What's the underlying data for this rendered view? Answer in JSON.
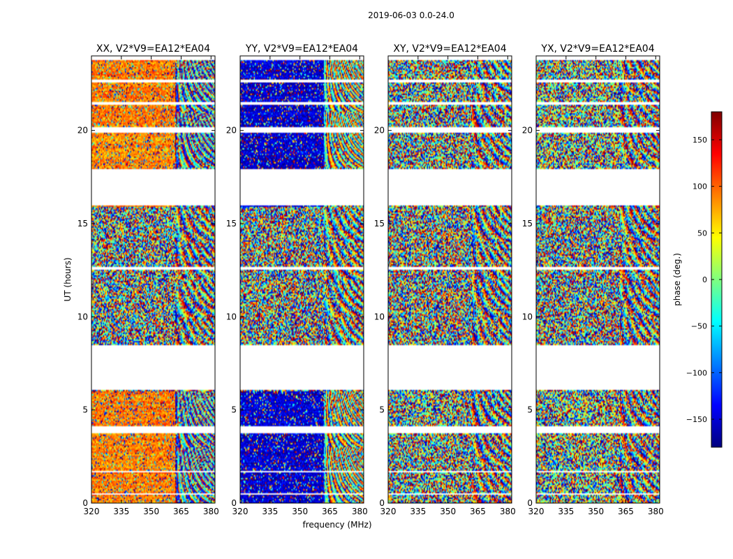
{
  "chart_data": {
    "type": "heatmap",
    "suptitle": "2019-06-03 0.0-24.0",
    "xlabel": "frequency (MHz)",
    "ylabel": "UT (hours)",
    "xlim": [
      320,
      382
    ],
    "ylim": [
      0,
      24
    ],
    "xticks": [
      320,
      335,
      350,
      365,
      380
    ],
    "yticks": [
      0,
      5,
      10,
      15,
      20
    ],
    "panels": [
      {
        "title": "XX, V2*V9=EA12*EA04",
        "bias": 90,
        "coherence": 0.75
      },
      {
        "title": "YY, V2*V9=EA12*EA04",
        "bias": -150,
        "coherence": 0.8
      },
      {
        "title": "XY, V2*V9=EA12*EA04",
        "bias": 0,
        "coherence": 0.05
      },
      {
        "title": "YX, V2*V9=EA12*EA04",
        "bias": 10,
        "coherence": 0.1
      }
    ],
    "data_gaps_hours": [
      [
        0.45,
        0.55
      ],
      [
        1.62,
        1.72
      ],
      [
        3.72,
        4.12
      ],
      [
        6.05,
        8.45
      ],
      [
        12.55,
        12.65
      ],
      [
        15.95,
        17.95
      ],
      [
        19.85,
        20.2
      ],
      [
        21.35,
        21.5
      ],
      [
        22.55,
        22.75
      ],
      [
        23.75,
        24.0
      ]
    ],
    "colorbar": {
      "label": "phase (deg.)",
      "vmin": -180,
      "vmax": 180,
      "ticks": [
        -150,
        -100,
        -50,
        0,
        50,
        100,
        150
      ],
      "tick_labels": [
        "−150",
        "−100",
        "−50",
        "0",
        "50",
        "100",
        "150"
      ],
      "colormap_stops": [
        "#00007f",
        "#0000ff",
        "#007fff",
        "#00ffff",
        "#7fff7f",
        "#ffff00",
        "#ff7f00",
        "#ff0000",
        "#7f0000"
      ]
    }
  }
}
